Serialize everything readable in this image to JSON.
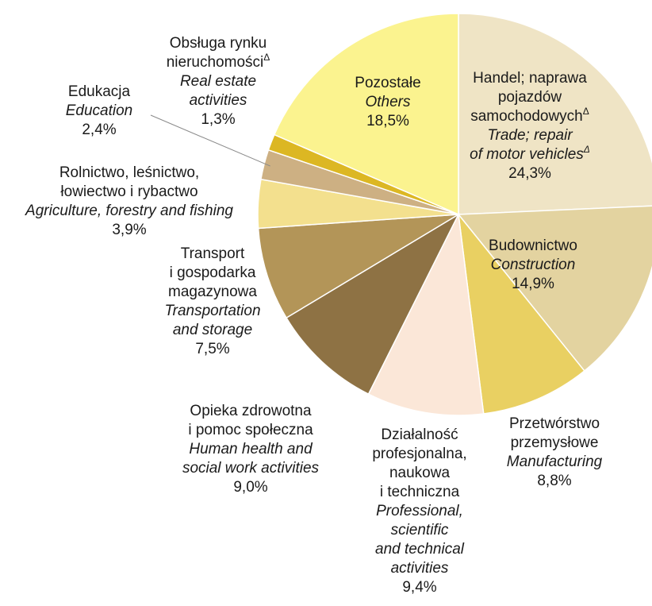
{
  "chart_data": {
    "type": "pie",
    "title": "",
    "slices": [
      {
        "pl": [
          "Handel; naprawa",
          "pojazdów",
          "samochodowych△"
        ],
        "en": [
          "Trade; repair",
          "of motor vehicles△"
        ],
        "value": 24.3,
        "label": "24,3%",
        "color": "#efe4c5"
      },
      {
        "pl": [
          "Budownictwo"
        ],
        "en": [
          "Construction"
        ],
        "value": 14.9,
        "label": "14,9%",
        "color": "#e3d3a0"
      },
      {
        "pl": [
          "Przetwórstwo",
          "przemysłowe"
        ],
        "en": [
          "Manufacturing"
        ],
        "value": 8.8,
        "label": "8,8%",
        "color": "#e9d062"
      },
      {
        "pl": [
          "Działalność",
          "profesjonalna,",
          "naukowa",
          "i techniczna"
        ],
        "en": [
          "Professional,",
          "scientific",
          "and technical",
          "activities"
        ],
        "value": 9.4,
        "label": "9,4%",
        "color": "#fbe7d8"
      },
      {
        "pl": [
          "Opieka zdrowotna",
          "i pomoc społeczna"
        ],
        "en": [
          "Human health and",
          "social work activities"
        ],
        "value": 9.0,
        "label": "9,0%",
        "color": "#8e7244"
      },
      {
        "pl": [
          "Transport",
          "i gospodarka",
          "magazynowa"
        ],
        "en": [
          "Transportation",
          "and storage"
        ],
        "value": 7.5,
        "label": "7,5%",
        "color": "#b39558"
      },
      {
        "pl": [
          "Rolnictwo, leśnictwo,",
          "łowiectwo i rybactwo"
        ],
        "en": [
          "Agriculture, forestry and fishing"
        ],
        "value": 3.9,
        "label": "3,9%",
        "color": "#f3e08e"
      },
      {
        "pl": [
          "Edukacja"
        ],
        "en": [
          "Education"
        ],
        "value": 2.4,
        "label": "2,4%",
        "color": "#cdb083"
      },
      {
        "pl": [
          "Obsługa rynku",
          "nieruchomości△"
        ],
        "en": [
          "Real estate",
          "activities"
        ],
        "value": 1.3,
        "label": "1,3%",
        "color": "#dcb723"
      },
      {
        "pl": [
          "Pozostałe"
        ],
        "en": [
          "Others"
        ],
        "value": 18.5,
        "label": "18,5%",
        "color": "#fbf38f"
      }
    ]
  }
}
